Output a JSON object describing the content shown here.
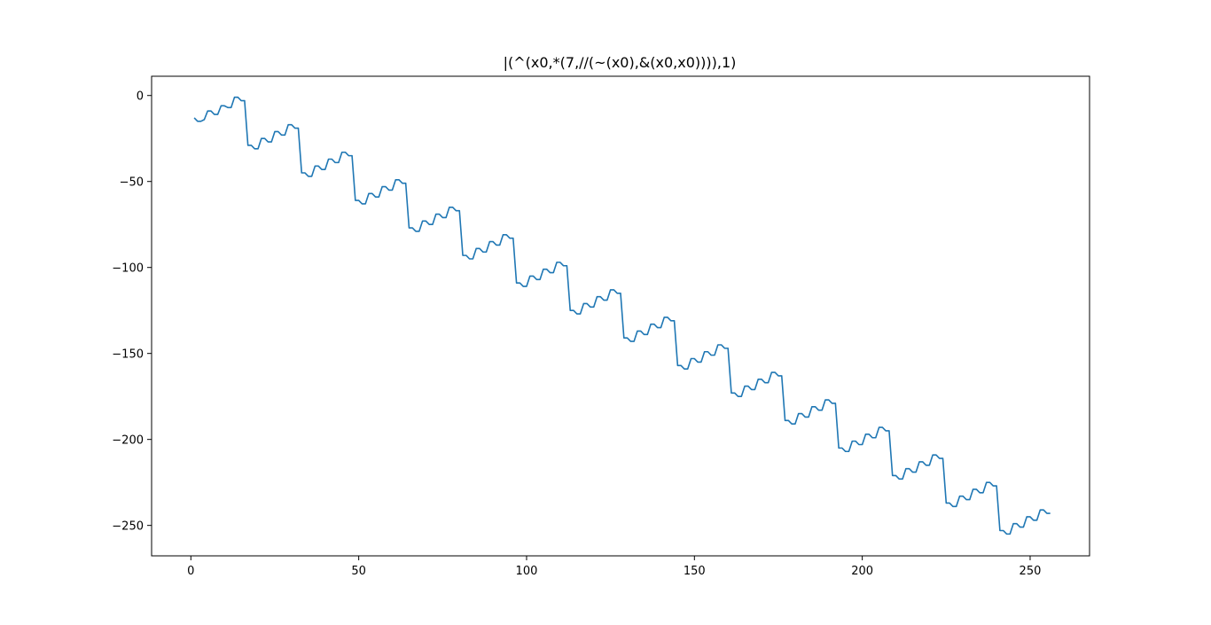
{
  "chart_data": {
    "type": "line",
    "title": "|(^(x0,*(7,//(~(x0),&(x0,x0)))),1)",
    "xlabel": "",
    "ylabel": "",
    "xlim": [
      -11.7,
      267.7
    ],
    "ylim": [
      -267.7,
      11.2
    ],
    "xticks": [
      0,
      50,
      100,
      150,
      200,
      250
    ],
    "xtick_labels": [
      "0",
      "50",
      "100",
      "150",
      "200",
      "250"
    ],
    "yticks": [
      0,
      -50,
      -100,
      -150,
      -200,
      -250
    ],
    "ytick_labels": [
      "0",
      "−50",
      "−100",
      "−150",
      "−200",
      "−250"
    ],
    "grid": false,
    "legend": "none",
    "series": [
      {
        "color": "#1f77b4",
        "x": [
          1,
          255
        ],
        "y": [
          -13,
          -243
        ],
        "x_start": 1,
        "y_at_x": [
          -13,
          -15,
          -15,
          -14,
          -9,
          -9,
          -11,
          -11,
          -6,
          -6,
          -7,
          -7,
          -1,
          -1,
          -3,
          -3,
          -29,
          -29,
          -31,
          -31,
          -25,
          -25,
          -27,
          -27,
          -21,
          -21,
          -23,
          -23,
          -17,
          -17,
          -19,
          -19,
          -45,
          -45,
          -47,
          -47,
          -41,
          -41,
          -43,
          -43,
          -37,
          -37,
          -39,
          -39,
          -33,
          -33,
          -35,
          -35,
          -61,
          -61,
          -63,
          -63,
          -57,
          -57,
          -59,
          -59,
          -53,
          -53,
          -55,
          -55,
          -49,
          -49,
          -51,
          -51,
          -77,
          -77,
          -79,
          -79,
          -73,
          -73,
          -75,
          -75,
          -69,
          -69,
          -71,
          -71,
          -65,
          -65,
          -67,
          -67,
          -93,
          -93,
          -95,
          -95,
          -89,
          -89,
          -91,
          -91,
          -85,
          -85,
          -87,
          -87,
          -81,
          -81,
          -83,
          -83,
          -109,
          -109,
          -111,
          -111,
          -105,
          -105,
          -107,
          -107,
          -101,
          -101,
          -103,
          -103,
          -97,
          -97,
          -99,
          -99,
          -125,
          -125,
          -127,
          -127,
          -121,
          -121,
          -123,
          -123,
          -117,
          -117,
          -119,
          -119,
          -113,
          -113,
          -115,
          -115,
          -141,
          -141,
          -143,
          -143,
          -137,
          -137,
          -139,
          -139,
          -133,
          -133,
          -135,
          -135,
          -129,
          -129,
          -131,
          -131,
          -157,
          -157,
          -159,
          -159,
          -153,
          -153,
          -155,
          -155,
          -149,
          -149,
          -151,
          -151,
          -145,
          -145,
          -147,
          -147,
          -173,
          -173,
          -175,
          -175,
          -169,
          -169,
          -171,
          -171,
          -165,
          -165,
          -167,
          -167,
          -161,
          -161,
          -163,
          -163,
          -189,
          -189,
          -191,
          -191,
          -185,
          -185,
          -187,
          -187,
          -181,
          -181,
          -183,
          -183,
          -177,
          -177,
          -179,
          -179,
          -205,
          -205,
          -207,
          -207,
          -201,
          -201,
          -203,
          -203,
          -197,
          -197,
          -199,
          -199,
          -193,
          -193,
          -195,
          -195,
          -221,
          -221,
          -223,
          -223,
          -217,
          -217,
          -219,
          -219,
          -213,
          -213,
          -215,
          -215,
          -209,
          -209,
          -211,
          -211,
          -237,
          -237,
          -239,
          -239,
          -233,
          -233,
          -235,
          -235,
          -229,
          -229,
          -231,
          -231,
          -225,
          -225,
          -227,
          -227,
          -253,
          -253,
          -255,
          -255,
          -249,
          -249,
          -251,
          -251,
          -245,
          -245,
          -247,
          -247,
          -241,
          -241,
          -243,
          -243
        ]
      }
    ]
  }
}
